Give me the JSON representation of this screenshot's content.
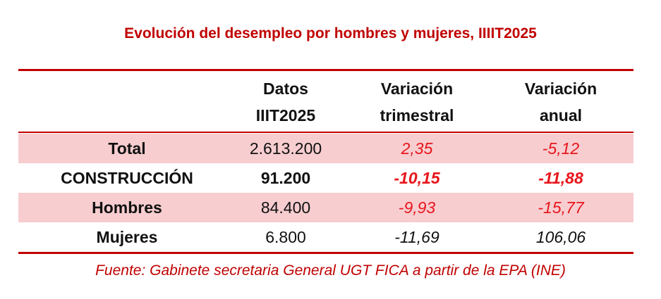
{
  "title": "Evolución del desempleo por hombres y mujeres, IIIIT2025",
  "headers": {
    "datos": [
      "Datos",
      "IIIT2025"
    ],
    "trimestral": [
      "Variación",
      "trimestral"
    ],
    "anual": [
      "Variación",
      "anual"
    ]
  },
  "rows": [
    {
      "label": "Total",
      "datos": "2.613.200",
      "trimestral": "2,35",
      "anual": "-5,12"
    },
    {
      "label": "CONSTRUCCIÓN",
      "datos": "91.200",
      "trimestral": "-10,15",
      "anual": "-11,88"
    },
    {
      "label": "Hombres",
      "datos": "84.400",
      "trimestral": "-9,93",
      "anual": "-15,77"
    },
    {
      "label": "Mujeres",
      "datos": "6.800",
      "trimestral": "-11,69",
      "anual": "106,06"
    }
  ],
  "source": "Fuente: Gabinete secretaria General UGT FICA a partir de la EPA (INE)",
  "colors": {
    "accent": "#c00000",
    "highlight_value": "#e8151b",
    "row_shading": "#f7cdd0"
  }
}
